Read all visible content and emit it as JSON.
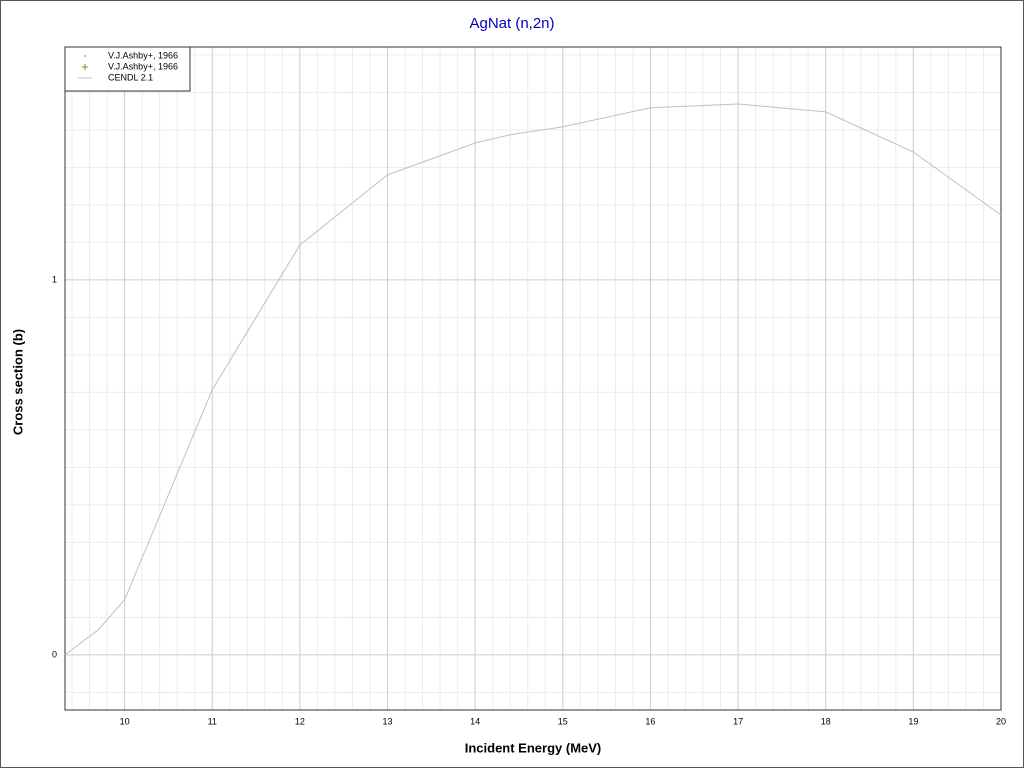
{
  "chart_data": {
    "type": "line",
    "title": "AgNat (n,2n)",
    "x_label": "Incident Energy (MeV)",
    "y_label": "Cross section (b)",
    "xlim": [
      9.32,
      20
    ],
    "ylim": [
      -0.147,
      1.621
    ],
    "xticks": [
      10,
      11,
      12,
      13,
      14,
      15,
      16,
      17,
      18,
      19,
      20
    ],
    "yticks": [
      0,
      1
    ],
    "grid": true,
    "legend": "top-left",
    "series": [
      {
        "name": "V.J.Ashby+, 1966",
        "color": "#a0a0a0",
        "marker": "dot",
        "x": [],
        "values": []
      },
      {
        "name": "V.J.Ashby+, 1966",
        "color": "#a08020",
        "marker": "plus",
        "x": [],
        "values": []
      },
      {
        "name": "CENDL 2.1",
        "color": "#c0c0c0",
        "marker": "none",
        "x": [
          9.32,
          9.7,
          10,
          11,
          12,
          13,
          14,
          14.4,
          15,
          16,
          17,
          18,
          19,
          20
        ],
        "values": [
          0,
          0.067,
          0.147,
          0.707,
          1.093,
          1.28,
          1.365,
          1.387,
          1.408,
          1.459,
          1.469,
          1.448,
          1.341,
          1.173
        ]
      }
    ]
  }
}
